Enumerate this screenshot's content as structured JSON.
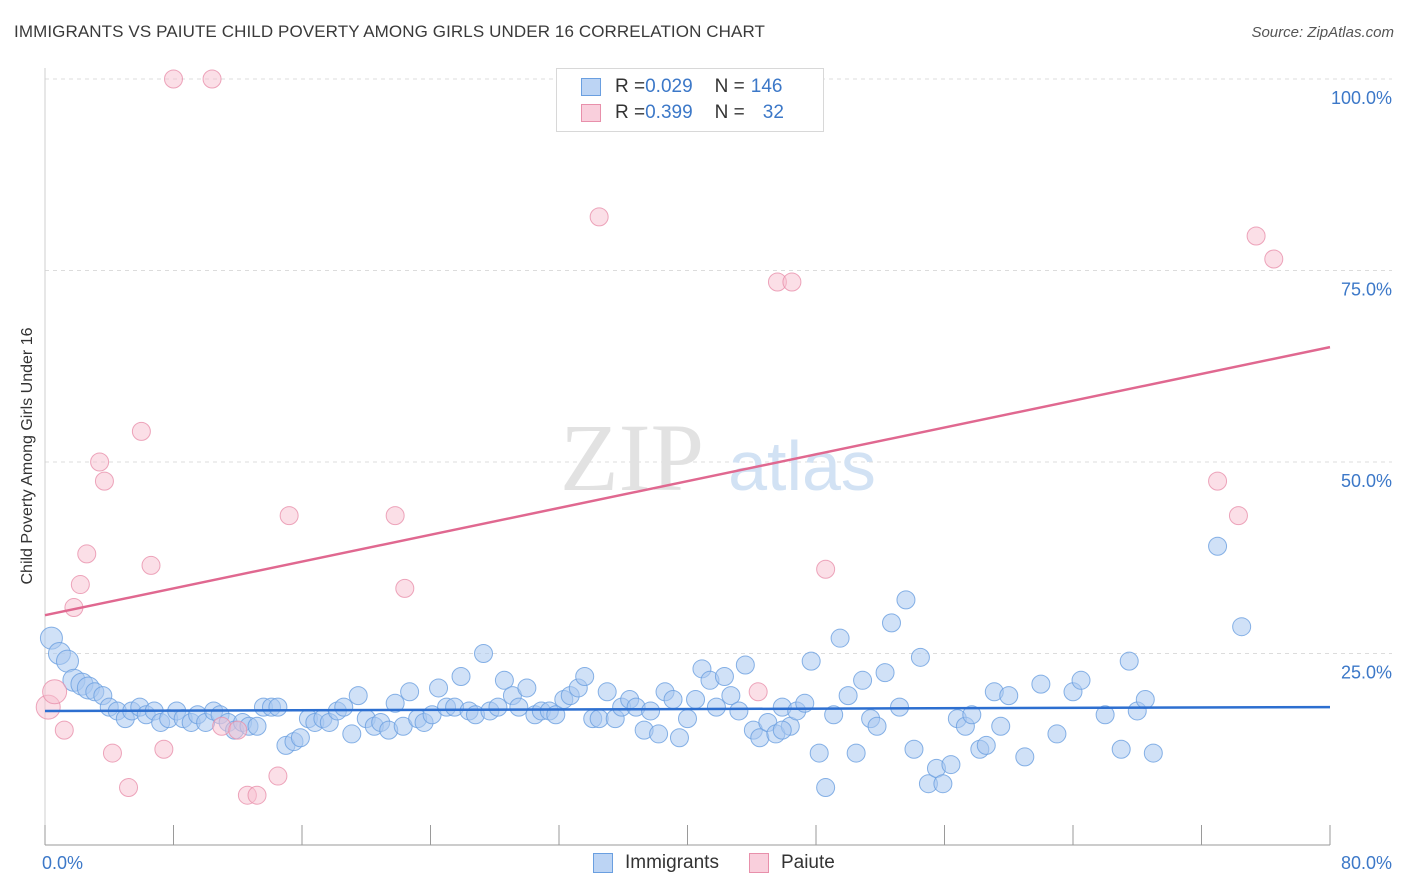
{
  "title": "IMMIGRANTS VS PAIUTE CHILD POVERTY AMONG GIRLS UNDER 16 CORRELATION CHART",
  "source": "Source: ZipAtlas.com",
  "watermark": {
    "zip": "ZIP",
    "atlas": "atlas"
  },
  "legend": {
    "rows": [
      {
        "r_label": "R = ",
        "r_value": "0.029",
        "n_label": "N = ",
        "n_value": "146"
      },
      {
        "r_label": "R = ",
        "r_value": "0.399",
        "n_label": "N = ",
        "n_value": "32"
      }
    ]
  },
  "bottom_legend": [
    "Immigrants",
    "Paiute"
  ],
  "colors": {
    "immigrants_fill": "#a9c8f0",
    "immigrants_stroke": "#6a9fe0",
    "immigrants_line": "#2d6fd0",
    "paiute_fill": "#f7bfd0",
    "paiute_stroke": "#e890ab",
    "paiute_line": "#e06890",
    "tick_label": "#3c78c8"
  },
  "chart_data": {
    "type": "scatter",
    "xlabel": "",
    "ylabel": "Child Poverty Among Girls Under 16",
    "xlim": [
      0,
      80
    ],
    "ylim": [
      0,
      100
    ],
    "x_tick_labels": [
      "0.0%",
      "80.0%"
    ],
    "y_ticks": [
      25,
      50,
      75,
      100
    ],
    "y_tick_labels": [
      "25.0%",
      "50.0%",
      "75.0%",
      "100.0%"
    ],
    "grid": true,
    "legend_position": "top-center",
    "series": [
      {
        "name": "Immigrants",
        "trend": {
          "x": [
            0,
            80
          ],
          "y": [
            17.5,
            18.0
          ]
        },
        "points": [
          [
            0.4,
            27
          ],
          [
            0.9,
            25
          ],
          [
            1.4,
            24
          ],
          [
            1.8,
            21.5
          ],
          [
            2.3,
            21
          ],
          [
            2.7,
            20.5
          ],
          [
            3.1,
            20
          ],
          [
            3.6,
            19.5
          ],
          [
            4.0,
            18
          ],
          [
            4.5,
            17.5
          ],
          [
            5.0,
            16.5
          ],
          [
            5.4,
            17.5
          ],
          [
            5.9,
            18
          ],
          [
            6.3,
            17
          ],
          [
            6.8,
            17.5
          ],
          [
            7.2,
            16
          ],
          [
            7.7,
            16.5
          ],
          [
            8.2,
            17.5
          ],
          [
            8.6,
            16.5
          ],
          [
            9.1,
            16
          ],
          [
            9.5,
            17
          ],
          [
            10.0,
            16
          ],
          [
            10.5,
            17.5
          ],
          [
            10.9,
            17
          ],
          [
            11.4,
            16
          ],
          [
            11.8,
            15
          ],
          [
            12.3,
            16
          ],
          [
            12.7,
            15.5
          ],
          [
            13.2,
            15.5
          ],
          [
            13.6,
            18
          ],
          [
            14.1,
            18
          ],
          [
            14.5,
            18
          ],
          [
            15.0,
            13
          ],
          [
            15.5,
            13.5
          ],
          [
            15.9,
            14
          ],
          [
            16.4,
            16.5
          ],
          [
            16.8,
            16
          ],
          [
            17.3,
            16.5
          ],
          [
            17.7,
            16
          ],
          [
            18.2,
            17.5
          ],
          [
            18.6,
            18
          ],
          [
            19.1,
            14.5
          ],
          [
            19.5,
            19.5
          ],
          [
            20.0,
            16.5
          ],
          [
            20.5,
            15.5
          ],
          [
            20.9,
            16
          ],
          [
            21.4,
            15
          ],
          [
            21.8,
            18.5
          ],
          [
            22.3,
            15.5
          ],
          [
            22.7,
            20
          ],
          [
            23.2,
            16.5
          ],
          [
            23.6,
            16
          ],
          [
            24.1,
            17
          ],
          [
            24.5,
            20.5
          ],
          [
            25.0,
            18
          ],
          [
            25.5,
            18
          ],
          [
            25.9,
            22
          ],
          [
            26.4,
            17.5
          ],
          [
            26.8,
            17
          ],
          [
            27.3,
            25
          ],
          [
            27.7,
            17.5
          ],
          [
            28.2,
            18
          ],
          [
            28.6,
            21.5
          ],
          [
            29.1,
            19.5
          ],
          [
            29.5,
            18
          ],
          [
            30.0,
            20.5
          ],
          [
            30.5,
            17
          ],
          [
            30.9,
            17.5
          ],
          [
            31.4,
            17.5
          ],
          [
            31.8,
            17
          ],
          [
            32.3,
            19
          ],
          [
            32.7,
            19.5
          ],
          [
            33.2,
            20.5
          ],
          [
            33.6,
            22
          ],
          [
            34.1,
            16.5
          ],
          [
            34.5,
            16.5
          ],
          [
            35.0,
            20
          ],
          [
            35.5,
            16.5
          ],
          [
            35.9,
            18
          ],
          [
            36.4,
            19
          ],
          [
            36.8,
            18
          ],
          [
            37.3,
            15
          ],
          [
            37.7,
            17.5
          ],
          [
            38.2,
            14.5
          ],
          [
            38.6,
            20
          ],
          [
            39.1,
            19
          ],
          [
            39.5,
            14
          ],
          [
            40.0,
            16.5
          ],
          [
            40.5,
            19
          ],
          [
            40.9,
            23
          ],
          [
            41.4,
            21.5
          ],
          [
            41.8,
            18
          ],
          [
            42.3,
            22
          ],
          [
            42.7,
            19.5
          ],
          [
            43.2,
            17.5
          ],
          [
            43.6,
            23.5
          ],
          [
            44.1,
            15
          ],
          [
            44.5,
            14
          ],
          [
            45.0,
            16
          ],
          [
            45.5,
            14.5
          ],
          [
            45.9,
            18
          ],
          [
            46.4,
            15.5
          ],
          [
            46.8,
            17.5
          ],
          [
            47.3,
            18.5
          ],
          [
            47.7,
            24
          ],
          [
            48.2,
            12
          ],
          [
            48.6,
            7.5
          ],
          [
            49.1,
            17
          ],
          [
            49.5,
            27
          ],
          [
            50.0,
            19.5
          ],
          [
            50.5,
            12
          ],
          [
            50.9,
            21.5
          ],
          [
            51.4,
            16.5
          ],
          [
            51.8,
            15.5
          ],
          [
            52.3,
            22.5
          ],
          [
            52.7,
            29
          ],
          [
            53.2,
            18
          ],
          [
            53.6,
            32
          ],
          [
            54.1,
            12.5
          ],
          [
            54.5,
            24.5
          ],
          [
            55.0,
            8
          ],
          [
            55.5,
            10
          ],
          [
            55.9,
            8
          ],
          [
            56.4,
            10.5
          ],
          [
            56.8,
            16.5
          ],
          [
            57.3,
            15.5
          ],
          [
            57.7,
            17
          ],
          [
            58.2,
            12.5
          ],
          [
            58.6,
            13
          ],
          [
            59.1,
            20
          ],
          [
            59.5,
            15.5
          ],
          [
            60.0,
            19.5
          ],
          [
            61.0,
            11.5
          ],
          [
            62.0,
            21
          ],
          [
            63.0,
            14.5
          ],
          [
            64.0,
            20
          ],
          [
            64.5,
            21.5
          ],
          [
            66.0,
            17
          ],
          [
            67.0,
            12.5
          ],
          [
            67.5,
            24
          ],
          [
            68.0,
            17.5
          ],
          [
            68.5,
            19
          ],
          [
            69.0,
            12
          ],
          [
            73.0,
            39
          ],
          [
            74.5,
            28.5
          ],
          [
            45.9,
            15
          ]
        ]
      },
      {
        "name": "Paiute",
        "trend": {
          "x": [
            0,
            80
          ],
          "y": [
            30,
            65
          ]
        },
        "points": [
          [
            0.2,
            18
          ],
          [
            0.6,
            20
          ],
          [
            1.2,
            15
          ],
          [
            1.8,
            31
          ],
          [
            2.2,
            34
          ],
          [
            2.6,
            38
          ],
          [
            3.4,
            50
          ],
          [
            3.7,
            47.5
          ],
          [
            4.2,
            12
          ],
          [
            5.2,
            7.5
          ],
          [
            6.0,
            54
          ],
          [
            6.6,
            36.5
          ],
          [
            7.4,
            12.5
          ],
          [
            8.0,
            100
          ],
          [
            10.4,
            100
          ],
          [
            11.0,
            15.5
          ],
          [
            12.0,
            15
          ],
          [
            12.6,
            6.5
          ],
          [
            13.2,
            6.5
          ],
          [
            14.5,
            9
          ],
          [
            15.2,
            43
          ],
          [
            21.8,
            43
          ],
          [
            22.4,
            33.5
          ],
          [
            34.5,
            82
          ],
          [
            44.4,
            20
          ],
          [
            45.6,
            73.5
          ],
          [
            46.5,
            73.5
          ],
          [
            48.6,
            36
          ],
          [
            73.0,
            47.5
          ],
          [
            74.3,
            43
          ],
          [
            75.4,
            79.5
          ],
          [
            76.5,
            76.5
          ]
        ]
      }
    ]
  }
}
